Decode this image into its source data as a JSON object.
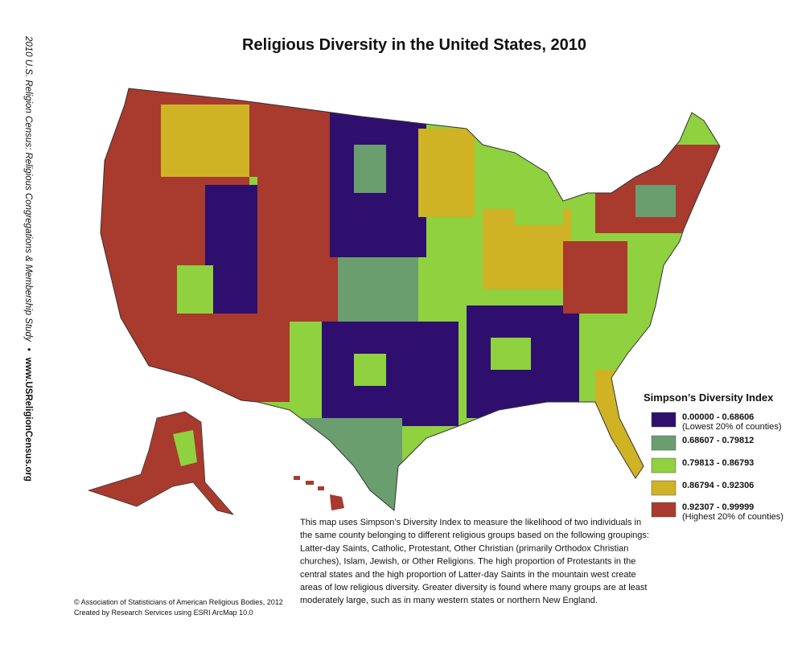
{
  "header": {
    "title": "Religious Diversity in the United States, 2010"
  },
  "side_text": {
    "study": "2010 U.S. Religion Census: Religious Congregations & Membership Study",
    "separator": "•",
    "url": "www.USReligionCensus.org"
  },
  "legend": {
    "title": "Simpson’s Diversity Index",
    "items": [
      {
        "label": "0.00000 - 0.68606",
        "note": "(Lowest 20% of counties)",
        "color": "#2e0f6e"
      },
      {
        "label": "0.68607 - 0.79812",
        "color": "#6a9e6e"
      },
      {
        "label": "0.79813 - 0.86793",
        "color": "#8fd13f"
      },
      {
        "label": "0.86794 - 0.92306",
        "color": "#cfb324"
      },
      {
        "label": "0.92307 - 0.99999",
        "note": "(Highest 20% of counties)",
        "color": "#a83a2e"
      }
    ]
  },
  "description": {
    "lines": [
      "This map uses Simpson’s Diversity Index to measure the likelihood of two individuals in",
      "the same county belonging to different religious groups based on the following groupings:",
      "Latter-day Saints, Catholic, Protestant, Other Christian (primarily Orthodox Christian",
      "churches), Islam, Jewish, or Other Religions. The high proportion of Protestants in the",
      "central states and the high proportion of Latter-day Saints in the mountain west create",
      "areas of low religious diversity. Greater diversity is found where many groups are at least",
      "moderately large, such as in many western states or northern New England."
    ]
  },
  "credits": {
    "lines": [
      "© Association of Statisticians of American Religious Bodies, 2012",
      "Created by Research Services using ESRI ArcMap 10.0"
    ]
  }
}
